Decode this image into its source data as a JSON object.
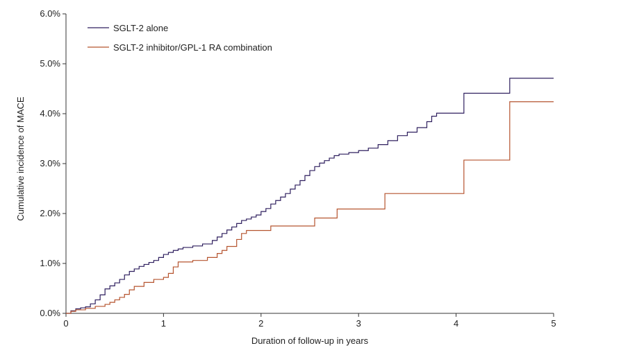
{
  "chart_data": {
    "type": "line",
    "step": true,
    "title": "",
    "xlabel": "Duration of follow-up in years",
    "ylabel": "Cumulative incidence of MACE",
    "xlim": [
      0,
      5
    ],
    "ylim": [
      0,
      0.06
    ],
    "x_ticks": [
      0,
      1,
      2,
      3,
      4,
      5
    ],
    "x_tick_labels": [
      "0",
      "1",
      "2",
      "3",
      "4",
      "5"
    ],
    "y_ticks": [
      0,
      0.01,
      0.02,
      0.03,
      0.04,
      0.05,
      0.06
    ],
    "y_tick_labels": [
      "0.0%",
      "1.0%",
      "2.0%",
      "3.0%",
      "4.0%",
      "5.0%",
      "6.0%"
    ],
    "grid": false,
    "legend_position": "top-left",
    "series": [
      {
        "name": "SGLT-2 alone",
        "color": "#2e1f5e",
        "x": [
          0,
          0.05,
          0.1,
          0.15,
          0.2,
          0.25,
          0.3,
          0.35,
          0.4,
          0.45,
          0.5,
          0.55,
          0.6,
          0.65,
          0.7,
          0.75,
          0.8,
          0.85,
          0.9,
          0.95,
          1.0,
          1.05,
          1.1,
          1.15,
          1.2,
          1.3,
          1.4,
          1.5,
          1.55,
          1.6,
          1.65,
          1.7,
          1.75,
          1.8,
          1.85,
          1.9,
          1.95,
          2.0,
          2.05,
          2.1,
          2.15,
          2.2,
          2.25,
          2.3,
          2.35,
          2.4,
          2.45,
          2.5,
          2.55,
          2.6,
          2.65,
          2.7,
          2.75,
          2.8,
          2.9,
          3.0,
          3.1,
          3.2,
          3.3,
          3.4,
          3.5,
          3.6,
          3.7,
          3.75,
          3.8,
          4.08,
          4.55,
          5.0
        ],
        "values": [
          0,
          0.0005,
          0.0009,
          0.0011,
          0.0013,
          0.0019,
          0.0027,
          0.0037,
          0.0049,
          0.0055,
          0.0061,
          0.0068,
          0.0077,
          0.0084,
          0.0089,
          0.0094,
          0.0098,
          0.0102,
          0.0106,
          0.0112,
          0.0118,
          0.0122,
          0.0126,
          0.0129,
          0.0132,
          0.0135,
          0.0139,
          0.0146,
          0.0153,
          0.016,
          0.0167,
          0.0173,
          0.018,
          0.0186,
          0.0189,
          0.0193,
          0.0197,
          0.0204,
          0.021,
          0.0219,
          0.0226,
          0.0233,
          0.024,
          0.0249,
          0.0257,
          0.0266,
          0.0276,
          0.0286,
          0.0294,
          0.0301,
          0.0306,
          0.0311,
          0.0316,
          0.0319,
          0.0322,
          0.0326,
          0.0331,
          0.0338,
          0.0346,
          0.0356,
          0.0363,
          0.0372,
          0.0384,
          0.0395,
          0.0401,
          0.0441,
          0.0471,
          0.0471
        ]
      },
      {
        "name": "SGLT-2 inhibitor/GPL-1 RA combination",
        "color": "#b5532e",
        "x": [
          0,
          0.05,
          0.1,
          0.2,
          0.3,
          0.4,
          0.45,
          0.5,
          0.55,
          0.6,
          0.65,
          0.7,
          0.8,
          0.9,
          1.0,
          1.05,
          1.1,
          1.15,
          1.3,
          1.45,
          1.55,
          1.6,
          1.65,
          1.75,
          1.8,
          1.85,
          2.1,
          2.55,
          2.78,
          3.27,
          4.08,
          4.55,
          5.0
        ],
        "values": [
          0,
          0.0004,
          0.0007,
          0.001,
          0.0014,
          0.0018,
          0.0022,
          0.0027,
          0.0032,
          0.0038,
          0.0047,
          0.0054,
          0.0062,
          0.0068,
          0.0072,
          0.008,
          0.0093,
          0.0103,
          0.0106,
          0.0112,
          0.012,
          0.0126,
          0.0134,
          0.0148,
          0.016,
          0.0166,
          0.0175,
          0.0191,
          0.0209,
          0.024,
          0.0307,
          0.0424,
          0.0424
        ]
      }
    ]
  }
}
